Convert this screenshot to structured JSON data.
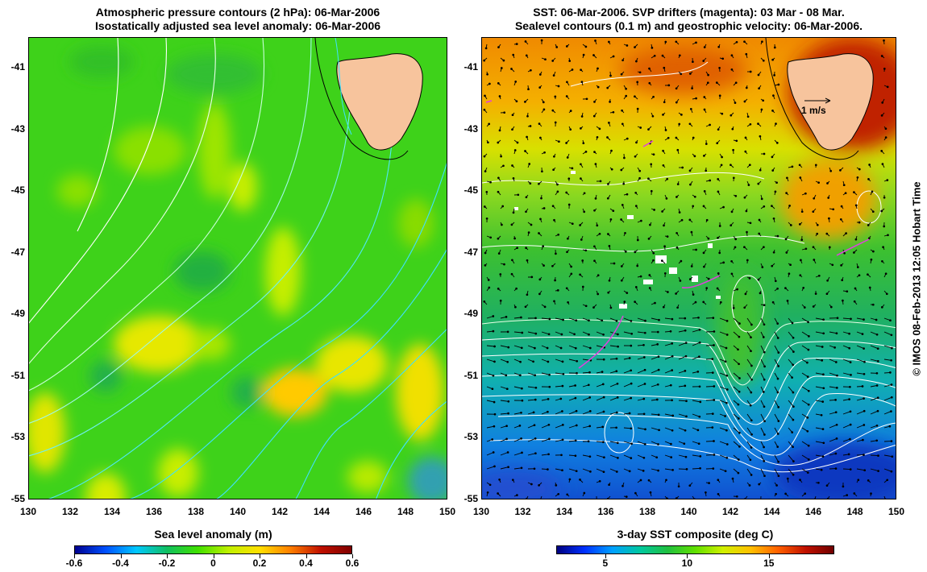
{
  "left_panel": {
    "title_line1": "Atmospheric pressure contours (2 hPa): 06-Mar-2006",
    "title_line2": "Isostatically adjusted sea level anomaly: 06-Mar-2006",
    "colorbar_title": "Sea level anomaly (m)",
    "colorbar_ticks": [
      "-0.6",
      "-0.4",
      "-0.2",
      "0",
      "0.2",
      "0.4",
      "0.6"
    ],
    "colorbar_range": [
      -0.6,
      0.6
    ]
  },
  "right_panel": {
    "title_line1": "SST: 06-Mar-2006. SVP drifters (magenta): 03 Mar - 08 Mar.",
    "title_line2": "Sealevel contours (0.1 m) and geostrophic velocity: 06-Mar-2006.",
    "colorbar_title": "3-day SST composite (deg C)",
    "colorbar_ticks": [
      "5",
      "10",
      "15"
    ],
    "colorbar_tick_values": [
      5,
      10,
      15
    ],
    "colorbar_range": [
      2,
      19
    ],
    "velocity_scale_label": "1 m/s"
  },
  "axes": {
    "x_ticks": [
      "130",
      "132",
      "134",
      "136",
      "138",
      "140",
      "142",
      "144",
      "146",
      "148",
      "150"
    ],
    "y_ticks": [
      "-41",
      "-43",
      "-45",
      "-47",
      "-49",
      "-51",
      "-53",
      "-55"
    ],
    "lon_range": [
      130,
      150
    ],
    "lat_range": [
      -55,
      -40
    ]
  },
  "credit": "© IMOS 08-Feb-2013 12:05 Hobart Time",
  "colors": {
    "land": "#f7c49d",
    "sla_colormap": [
      "#00008f",
      "#0050ff",
      "#00c8ff",
      "#10c060",
      "#40e000",
      "#c0f000",
      "#ffe000",
      "#ff8000",
      "#c01000",
      "#800000"
    ],
    "sst_colormap": [
      "#000080",
      "#0030ff",
      "#00a0ff",
      "#00c8a0",
      "#20c040",
      "#60e000",
      "#d0f000",
      "#ffc000",
      "#ff6000",
      "#c01000",
      "#700000"
    ],
    "drifter": "#e040e0"
  }
}
